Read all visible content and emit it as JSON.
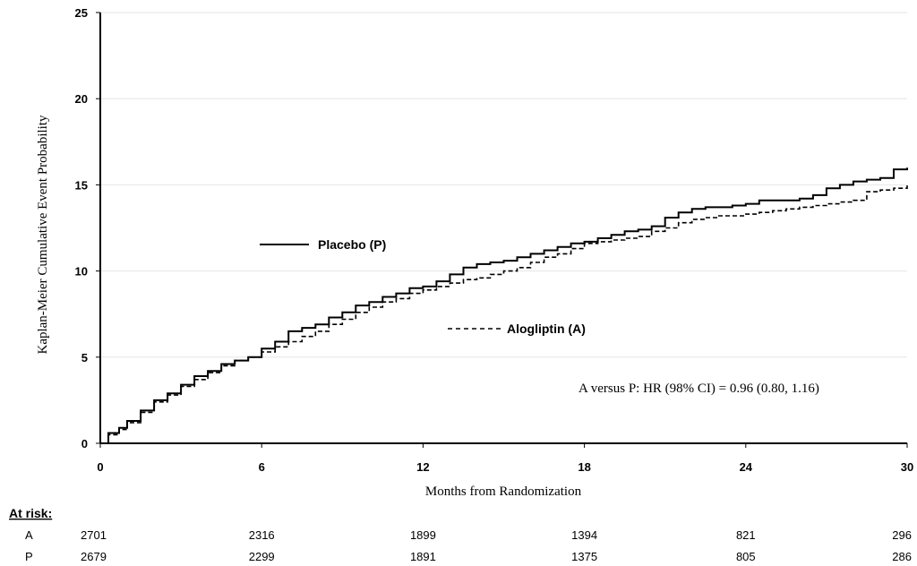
{
  "chart_data": {
    "type": "line",
    "title": "",
    "xlabel": "Months from Randomization",
    "ylabel": "Kaplan-Meier Cumulative Event Probability",
    "xlim": [
      0,
      30
    ],
    "ylim": [
      0,
      25
    ],
    "x_ticks": [
      "0",
      "6",
      "12",
      "18",
      "24",
      "30"
    ],
    "y_ticks": [
      "0",
      "5",
      "10",
      "15",
      "20",
      "25"
    ],
    "grid": "horizontal",
    "series": [
      {
        "name": "Placebo (P)",
        "color": "#000000",
        "style": "solid",
        "x": [
          0,
          0.3,
          0.7,
          1,
          1.5,
          2,
          2.5,
          3,
          3.5,
          4,
          4.5,
          5,
          5.5,
          6,
          6.5,
          7,
          7.5,
          8,
          8.5,
          9,
          9.5,
          10,
          10.5,
          11,
          11.5,
          12,
          12.5,
          13,
          13.5,
          14,
          14.5,
          15,
          15.5,
          16,
          16.5,
          17,
          17.5,
          18,
          18.5,
          19,
          19.5,
          20,
          20.5,
          21,
          21.5,
          22,
          22.5,
          23,
          23.5,
          24,
          24.5,
          25,
          25.5,
          26,
          26.5,
          27,
          27.5,
          28,
          28.5,
          29,
          29.5,
          30
        ],
        "y": [
          0,
          0.6,
          0.9,
          1.3,
          1.9,
          2.5,
          2.9,
          3.4,
          3.9,
          4.2,
          4.6,
          4.8,
          5.0,
          5.5,
          5.9,
          6.5,
          6.7,
          6.9,
          7.3,
          7.6,
          8.0,
          8.2,
          8.5,
          8.7,
          9.0,
          9.1,
          9.4,
          9.8,
          10.2,
          10.4,
          10.5,
          10.6,
          10.8,
          11.0,
          11.2,
          11.4,
          11.6,
          11.7,
          11.9,
          12.1,
          12.3,
          12.4,
          12.6,
          13.1,
          13.4,
          13.6,
          13.7,
          13.7,
          13.8,
          13.9,
          14.1,
          14.1,
          14.1,
          14.2,
          14.4,
          14.8,
          15.0,
          15.2,
          15.3,
          15.4,
          15.9,
          16.0
        ]
      },
      {
        "name": "Alogliptin (A)",
        "color": "#000000",
        "style": "dashed",
        "x": [
          0,
          0.3,
          0.7,
          1,
          1.5,
          2,
          2.5,
          3,
          3.5,
          4,
          4.5,
          5,
          5.5,
          6,
          6.5,
          7,
          7.5,
          8,
          8.5,
          9,
          9.5,
          10,
          10.5,
          11,
          11.5,
          12,
          12.5,
          13,
          13.5,
          14,
          14.5,
          15,
          15.5,
          16,
          16.5,
          17,
          17.5,
          18,
          18.5,
          19,
          19.5,
          20,
          20.5,
          21,
          21.5,
          22,
          22.5,
          23,
          23.5,
          24,
          24.5,
          25,
          25.5,
          26,
          26.5,
          27,
          27.5,
          28,
          28.5,
          29,
          29.5,
          30
        ],
        "y": [
          0,
          0.5,
          0.8,
          1.2,
          1.8,
          2.4,
          2.8,
          3.3,
          3.7,
          4.1,
          4.5,
          4.8,
          5.0,
          5.3,
          5.6,
          5.9,
          6.2,
          6.5,
          6.9,
          7.2,
          7.6,
          7.9,
          8.2,
          8.4,
          8.7,
          8.9,
          9.1,
          9.3,
          9.5,
          9.6,
          9.8,
          10.0,
          10.2,
          10.5,
          10.8,
          11.0,
          11.3,
          11.6,
          11.7,
          11.8,
          11.9,
          12.0,
          12.3,
          12.5,
          12.8,
          13.0,
          13.1,
          13.2,
          13.2,
          13.3,
          13.4,
          13.5,
          13.6,
          13.7,
          13.8,
          13.9,
          14.0,
          14.1,
          14.6,
          14.7,
          14.8,
          15.0
        ]
      }
    ],
    "annotation": "A versus P: HR (98% CI) = 0.96 (0.80, 1.16)",
    "at_risk": {
      "title": "At risk:",
      "times": [
        0,
        6,
        12,
        18,
        24,
        30
      ],
      "rows": [
        {
          "label": "A",
          "counts": [
            "2701",
            "2316",
            "1899",
            "1394",
            "821",
            "296"
          ]
        },
        {
          "label": "P",
          "counts": [
            "2679",
            "2299",
            "1891",
            "1375",
            "805",
            "286"
          ]
        }
      ]
    }
  }
}
